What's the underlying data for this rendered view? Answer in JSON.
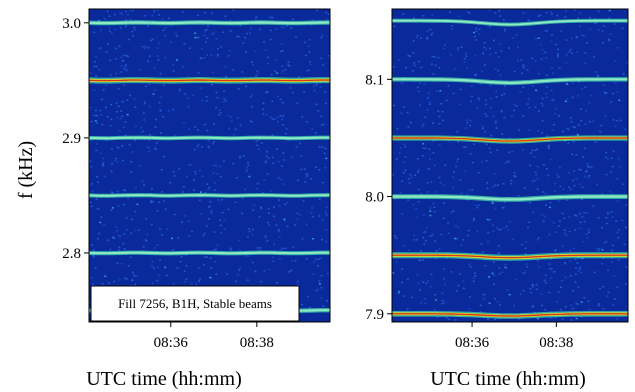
{
  "chart_data": [
    {
      "type": "heatmap",
      "panel": "left",
      "xlabel": "UTC time (hh:mm)",
      "ylabel": "f (kHz)",
      "ylim": [
        2.74,
        3.012
      ],
      "x_ticks": [
        "08:36",
        "08:38"
      ],
      "x_tick_values": [
        36,
        38
      ],
      "xlim": [
        34.1,
        39.7
      ],
      "y_ticks": [
        "2.8",
        "2.9",
        "3.0"
      ],
      "y_tick_values": [
        2.8,
        2.9,
        3.0
      ],
      "lines": [
        {
          "f": 2.75,
          "strength": 0.6
        },
        {
          "f": 2.8,
          "strength": 0.55
        },
        {
          "f": 2.85,
          "strength": 0.5
        },
        {
          "f": 2.9,
          "strength": 0.5
        },
        {
          "f": 2.95,
          "strength": 1.0
        },
        {
          "f": 3.0,
          "strength": 0.6
        }
      ],
      "annotation": "Fill 7256, B1H, Stable beams"
    },
    {
      "type": "heatmap",
      "panel": "right",
      "xlabel": "UTC time (hh:mm)",
      "ylabel": "",
      "ylim": [
        7.893,
        8.16
      ],
      "x_ticks": [
        "08:36",
        "08:38"
      ],
      "x_tick_values": [
        36,
        38
      ],
      "xlim": [
        34.1,
        39.7
      ],
      "y_ticks": [
        "7.9",
        "8.0",
        "8.1"
      ],
      "y_tick_values": [
        7.9,
        8.0,
        8.1
      ],
      "lines": [
        {
          "f": 7.9,
          "strength": 0.9
        },
        {
          "f": 7.95,
          "strength": 1.0
        },
        {
          "f": 8.0,
          "strength": 0.7
        },
        {
          "f": 8.05,
          "strength": 0.8
        },
        {
          "f": 8.1,
          "strength": 0.6
        },
        {
          "f": 8.15,
          "strength": 0.45
        }
      ]
    }
  ],
  "colors": {
    "background": "#0a2a9c",
    "noise": "#1a56d8",
    "line_core": "#d23a1e",
    "line_halo": "#3fd6a8",
    "line_mid": "#e8e020"
  }
}
